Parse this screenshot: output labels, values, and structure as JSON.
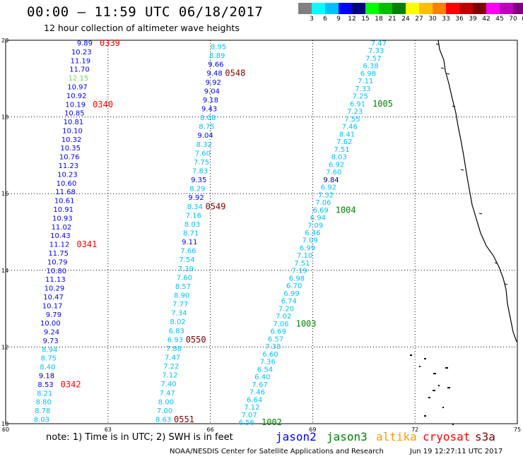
{
  "header": {
    "title": "00:00 – 11:59 UTC 06/18/2017",
    "subtitle": "12 hour collection of altimeter wave heights"
  },
  "legend": {
    "colors": [
      "#808080",
      "#00ffff",
      "#00bfff",
      "#0000ff",
      "#00007f",
      "#00ff00",
      "#00bf00",
      "#008000",
      "#ffff00",
      "#ffbf00",
      "#ff8000",
      "#ff0000",
      "#bf0000",
      "#800000",
      "#ff00ff",
      "#bf00bf",
      "#800080",
      "#000000"
    ],
    "labels": [
      "3",
      "6",
      "9",
      "12",
      "15",
      "18",
      "21",
      "24",
      "27",
      "30",
      "33",
      "36",
      "39",
      "42",
      "45",
      "70",
      "(ft)"
    ]
  },
  "axes": {
    "lon_ticks": [
      "60",
      "63",
      "66",
      "69",
      "72",
      "75"
    ],
    "lat_ticks": [
      "10",
      "12",
      "14",
      "16",
      "18",
      "20"
    ]
  },
  "tracks": [
    {
      "id": "0339-0342",
      "values": [
        {
          "v": "9.89",
          "c": "#0000ff"
        },
        {
          "v": "10.23",
          "c": "#0000ff"
        },
        {
          "v": "11.19",
          "c": "#0000ff"
        },
        {
          "v": "11.70",
          "c": "#0000ff"
        },
        {
          "v": "12.15",
          "c": "#66dd44"
        },
        {
          "v": "10.97",
          "c": "#0000ff"
        },
        {
          "v": "10.92",
          "c": "#0000ff"
        },
        {
          "v": "10.19",
          "c": "#0000ff"
        },
        {
          "v": "10.85",
          "c": "#0000ff"
        },
        {
          "v": "10.81",
          "c": "#0000ff"
        },
        {
          "v": "10.10",
          "c": "#0000ff"
        },
        {
          "v": "10.32",
          "c": "#0000ff"
        },
        {
          "v": "10.35",
          "c": "#0000ff"
        },
        {
          "v": "10.76",
          "c": "#0000ff"
        },
        {
          "v": "11.23",
          "c": "#0000ff"
        },
        {
          "v": "10.23",
          "c": "#0000ff"
        },
        {
          "v": "10.60",
          "c": "#0000ff"
        },
        {
          "v": "11.68",
          "c": "#0000ff"
        },
        {
          "v": "10.61",
          "c": "#0000ff"
        },
        {
          "v": "10.91",
          "c": "#0000ff"
        },
        {
          "v": "10.93",
          "c": "#0000ff"
        },
        {
          "v": "11.02",
          "c": "#0000ff"
        },
        {
          "v": "10.43",
          "c": "#0000ff"
        },
        {
          "v": "11.12",
          "c": "#0000ff"
        },
        {
          "v": "11.75",
          "c": "#0000ff"
        },
        {
          "v": "10.79",
          "c": "#0000ff"
        },
        {
          "v": "10.80",
          "c": "#0000ff"
        },
        {
          "v": "11.13",
          "c": "#0000ff"
        },
        {
          "v": "10.29",
          "c": "#0000ff"
        },
        {
          "v": "10.47",
          "c": "#0000ff"
        },
        {
          "v": "10.17",
          "c": "#0000ff"
        },
        {
          "v": "9.79",
          "c": "#0000ff"
        },
        {
          "v": "10.00",
          "c": "#0000ff"
        },
        {
          "v": "9.24",
          "c": "#0000ff"
        },
        {
          "v": "9.73",
          "c": "#0000ff"
        },
        {
          "v": "8.94",
          "c": "#00bfff"
        },
        {
          "v": "8.75",
          "c": "#00bfff"
        },
        {
          "v": "8.40",
          "c": "#00bfff"
        },
        {
          "v": "9.18",
          "c": "#00007f"
        },
        {
          "v": "8.53",
          "c": "#0000ff"
        },
        {
          "v": "8.21",
          "c": "#00bfff"
        },
        {
          "v": "8.80",
          "c": "#00bfff"
        },
        {
          "v": "8.78",
          "c": "#00bfff"
        },
        {
          "v": "8.03",
          "c": "#00bfff"
        }
      ],
      "passes": [
        {
          "label": "0339",
          "color": "#ff0000",
          "idx": 0
        },
        {
          "label": "0340",
          "color": "#ff0000",
          "idx": 7
        },
        {
          "label": "0341",
          "color": "#ff0000",
          "idx": 23
        },
        {
          "label": "0342",
          "color": "#ff0000",
          "idx": 39
        }
      ]
    },
    {
      "id": "0548-0551",
      "values": [
        {
          "v": "8.95",
          "c": "#00bfff"
        },
        {
          "v": "8.89",
          "c": "#00bfff"
        },
        {
          "v": "9.66",
          "c": "#0000ff"
        },
        {
          "v": "9.48",
          "c": "#0000ff"
        },
        {
          "v": "9.92",
          "c": "#0000ff"
        },
        {
          "v": "9.04",
          "c": "#0000ff"
        },
        {
          "v": "9.18",
          "c": "#0000ff"
        },
        {
          "v": "9.43",
          "c": "#0000ff"
        },
        {
          "v": "8.08",
          "c": "#00bfff"
        },
        {
          "v": "8.75",
          "c": "#00bfff"
        },
        {
          "v": "9.04",
          "c": "#0000ff"
        },
        {
          "v": "8.32",
          "c": "#00bfff"
        },
        {
          "v": "7.60",
          "c": "#00bfff"
        },
        {
          "v": "7.75",
          "c": "#00bfff"
        },
        {
          "v": "7.83",
          "c": "#00bfff"
        },
        {
          "v": "9.35",
          "c": "#0000ff"
        },
        {
          "v": "8.29",
          "c": "#00bfff"
        },
        {
          "v": "9.92",
          "c": "#0000ff"
        },
        {
          "v": "8.34",
          "c": "#00bfff"
        },
        {
          "v": "7.16",
          "c": "#00bfff"
        },
        {
          "v": "8.03",
          "c": "#00bfff"
        },
        {
          "v": "8.71",
          "c": "#00bfff"
        },
        {
          "v": "9.11",
          "c": "#0000ff"
        },
        {
          "v": "7.66",
          "c": "#00bfff"
        },
        {
          "v": "7.54",
          "c": "#00bfff"
        },
        {
          "v": "7.39",
          "c": "#00bfff"
        },
        {
          "v": "7.60",
          "c": "#00bfff"
        },
        {
          "v": "8.57",
          "c": "#00bfff"
        },
        {
          "v": "8.90",
          "c": "#00bfff"
        },
        {
          "v": "7.77",
          "c": "#00bfff"
        },
        {
          "v": "7.34",
          "c": "#00bfff"
        },
        {
          "v": "8.02",
          "c": "#00bfff"
        },
        {
          "v": "6.83",
          "c": "#00bfff"
        },
        {
          "v": "6.93",
          "c": "#00bfff"
        },
        {
          "v": "7.88",
          "c": "#00bfff"
        },
        {
          "v": "7.47",
          "c": "#00bfff"
        },
        {
          "v": "7.22",
          "c": "#00bfff"
        },
        {
          "v": "7.12",
          "c": "#00bfff"
        },
        {
          "v": "7.40",
          "c": "#00bfff"
        },
        {
          "v": "7.47",
          "c": "#00bfff"
        },
        {
          "v": "8.00",
          "c": "#00bfff"
        },
        {
          "v": "7.00",
          "c": "#00bfff"
        },
        {
          "v": "8.63",
          "c": "#00bfff"
        }
      ],
      "passes": [
        {
          "label": "0548",
          "color": "#800000",
          "idx": 3
        },
        {
          "label": "0549",
          "color": "#800000",
          "idx": 18
        },
        {
          "label": "0550",
          "color": "#800000",
          "idx": 33
        },
        {
          "label": "0551",
          "color": "#800000",
          "idx": 42
        }
      ]
    },
    {
      "id": "1005-1002",
      "values": [
        {
          "v": "7.47",
          "c": "#00bfff"
        },
        {
          "v": "7.33",
          "c": "#00bfff"
        },
        {
          "v": "7.57",
          "c": "#00bfff"
        },
        {
          "v": "6.38",
          "c": "#00bfff"
        },
        {
          "v": "6.98",
          "c": "#00bfff"
        },
        {
          "v": "7.11",
          "c": "#00bfff"
        },
        {
          "v": "7.33",
          "c": "#00bfff"
        },
        {
          "v": "7.25",
          "c": "#00bfff"
        },
        {
          "v": "6.91",
          "c": "#00bfff"
        },
        {
          "v": "7.23",
          "c": "#00bfff"
        },
        {
          "v": "7.55",
          "c": "#00bfff"
        },
        {
          "v": "7.46",
          "c": "#00bfff"
        },
        {
          "v": "8.41",
          "c": "#00bfff"
        },
        {
          "v": "7.62",
          "c": "#00bfff"
        },
        {
          "v": "7.51",
          "c": "#00bfff"
        },
        {
          "v": "8.03",
          "c": "#00bfff"
        },
        {
          "v": "6.92",
          "c": "#00bfff"
        },
        {
          "v": "7.60",
          "c": "#00bfff"
        },
        {
          "v": "9.84",
          "c": "#00007f"
        },
        {
          "v": "6.92",
          "c": "#00bfff"
        },
        {
          "v": "7.32",
          "c": "#00bfff"
        },
        {
          "v": "7.06",
          "c": "#00bfff"
        },
        {
          "v": "6.69",
          "c": "#00bfff"
        },
        {
          "v": "6.94",
          "c": "#00bfff"
        },
        {
          "v": "7.09",
          "c": "#00bfff"
        },
        {
          "v": "6.46",
          "c": "#00bfff"
        },
        {
          "v": "7.09",
          "c": "#00bfff"
        },
        {
          "v": "6.99",
          "c": "#00bfff"
        },
        {
          "v": "7.10",
          "c": "#00bfff"
        },
        {
          "v": "7.51",
          "c": "#00bfff"
        },
        {
          "v": "7.19",
          "c": "#00bfff"
        },
        {
          "v": "6.98",
          "c": "#00bfff"
        },
        {
          "v": "6.70",
          "c": "#00bfff"
        },
        {
          "v": "6.99",
          "c": "#00bfff"
        },
        {
          "v": "6.74",
          "c": "#00bfff"
        },
        {
          "v": "7.20",
          "c": "#00bfff"
        },
        {
          "v": "7.02",
          "c": "#00bfff"
        },
        {
          "v": "7.06",
          "c": "#00bfff"
        },
        {
          "v": "6.69",
          "c": "#00bfff"
        },
        {
          "v": "6.57",
          "c": "#00bfff"
        },
        {
          "v": "7.38",
          "c": "#00bfff"
        },
        {
          "v": "6.60",
          "c": "#00bfff"
        },
        {
          "v": "7.36",
          "c": "#00bfff"
        },
        {
          "v": "6.54",
          "c": "#00bfff"
        },
        {
          "v": "6.40",
          "c": "#00bfff"
        },
        {
          "v": "7.67",
          "c": "#00bfff"
        },
        {
          "v": "7.46",
          "c": "#00bfff"
        },
        {
          "v": "6.64",
          "c": "#00bfff"
        },
        {
          "v": "7.12",
          "c": "#00bfff"
        },
        {
          "v": "7.07",
          "c": "#00bfff"
        },
        {
          "v": "6.56",
          "c": "#00bfff"
        }
      ],
      "passes": [
        {
          "label": "1005",
          "color": "#008000",
          "idx": 8
        },
        {
          "label": "1004",
          "color": "#008000",
          "idx": 22
        },
        {
          "label": "1003",
          "color": "#008000",
          "idx": 37
        },
        {
          "label": "1002",
          "color": "#008000",
          "idx": 50
        }
      ]
    }
  ],
  "footer": {
    "note": "note: 1) Time is in UTC; 2) SWH is in feet",
    "satellites": [
      {
        "name": "jason2",
        "color": "#0000ff"
      },
      {
        "name": "jason3",
        "color": "#008000"
      },
      {
        "name": "altika",
        "color": "#ff9900"
      },
      {
        "name": "cryosat",
        "color": "#ff0000"
      },
      {
        "name": "s3a",
        "color": "#800000"
      }
    ],
    "credit": "NOAA/NESDIS Center for Satellite Applications and Research",
    "timestamp": "Jun 19 12:27:11 UTC 2017"
  }
}
